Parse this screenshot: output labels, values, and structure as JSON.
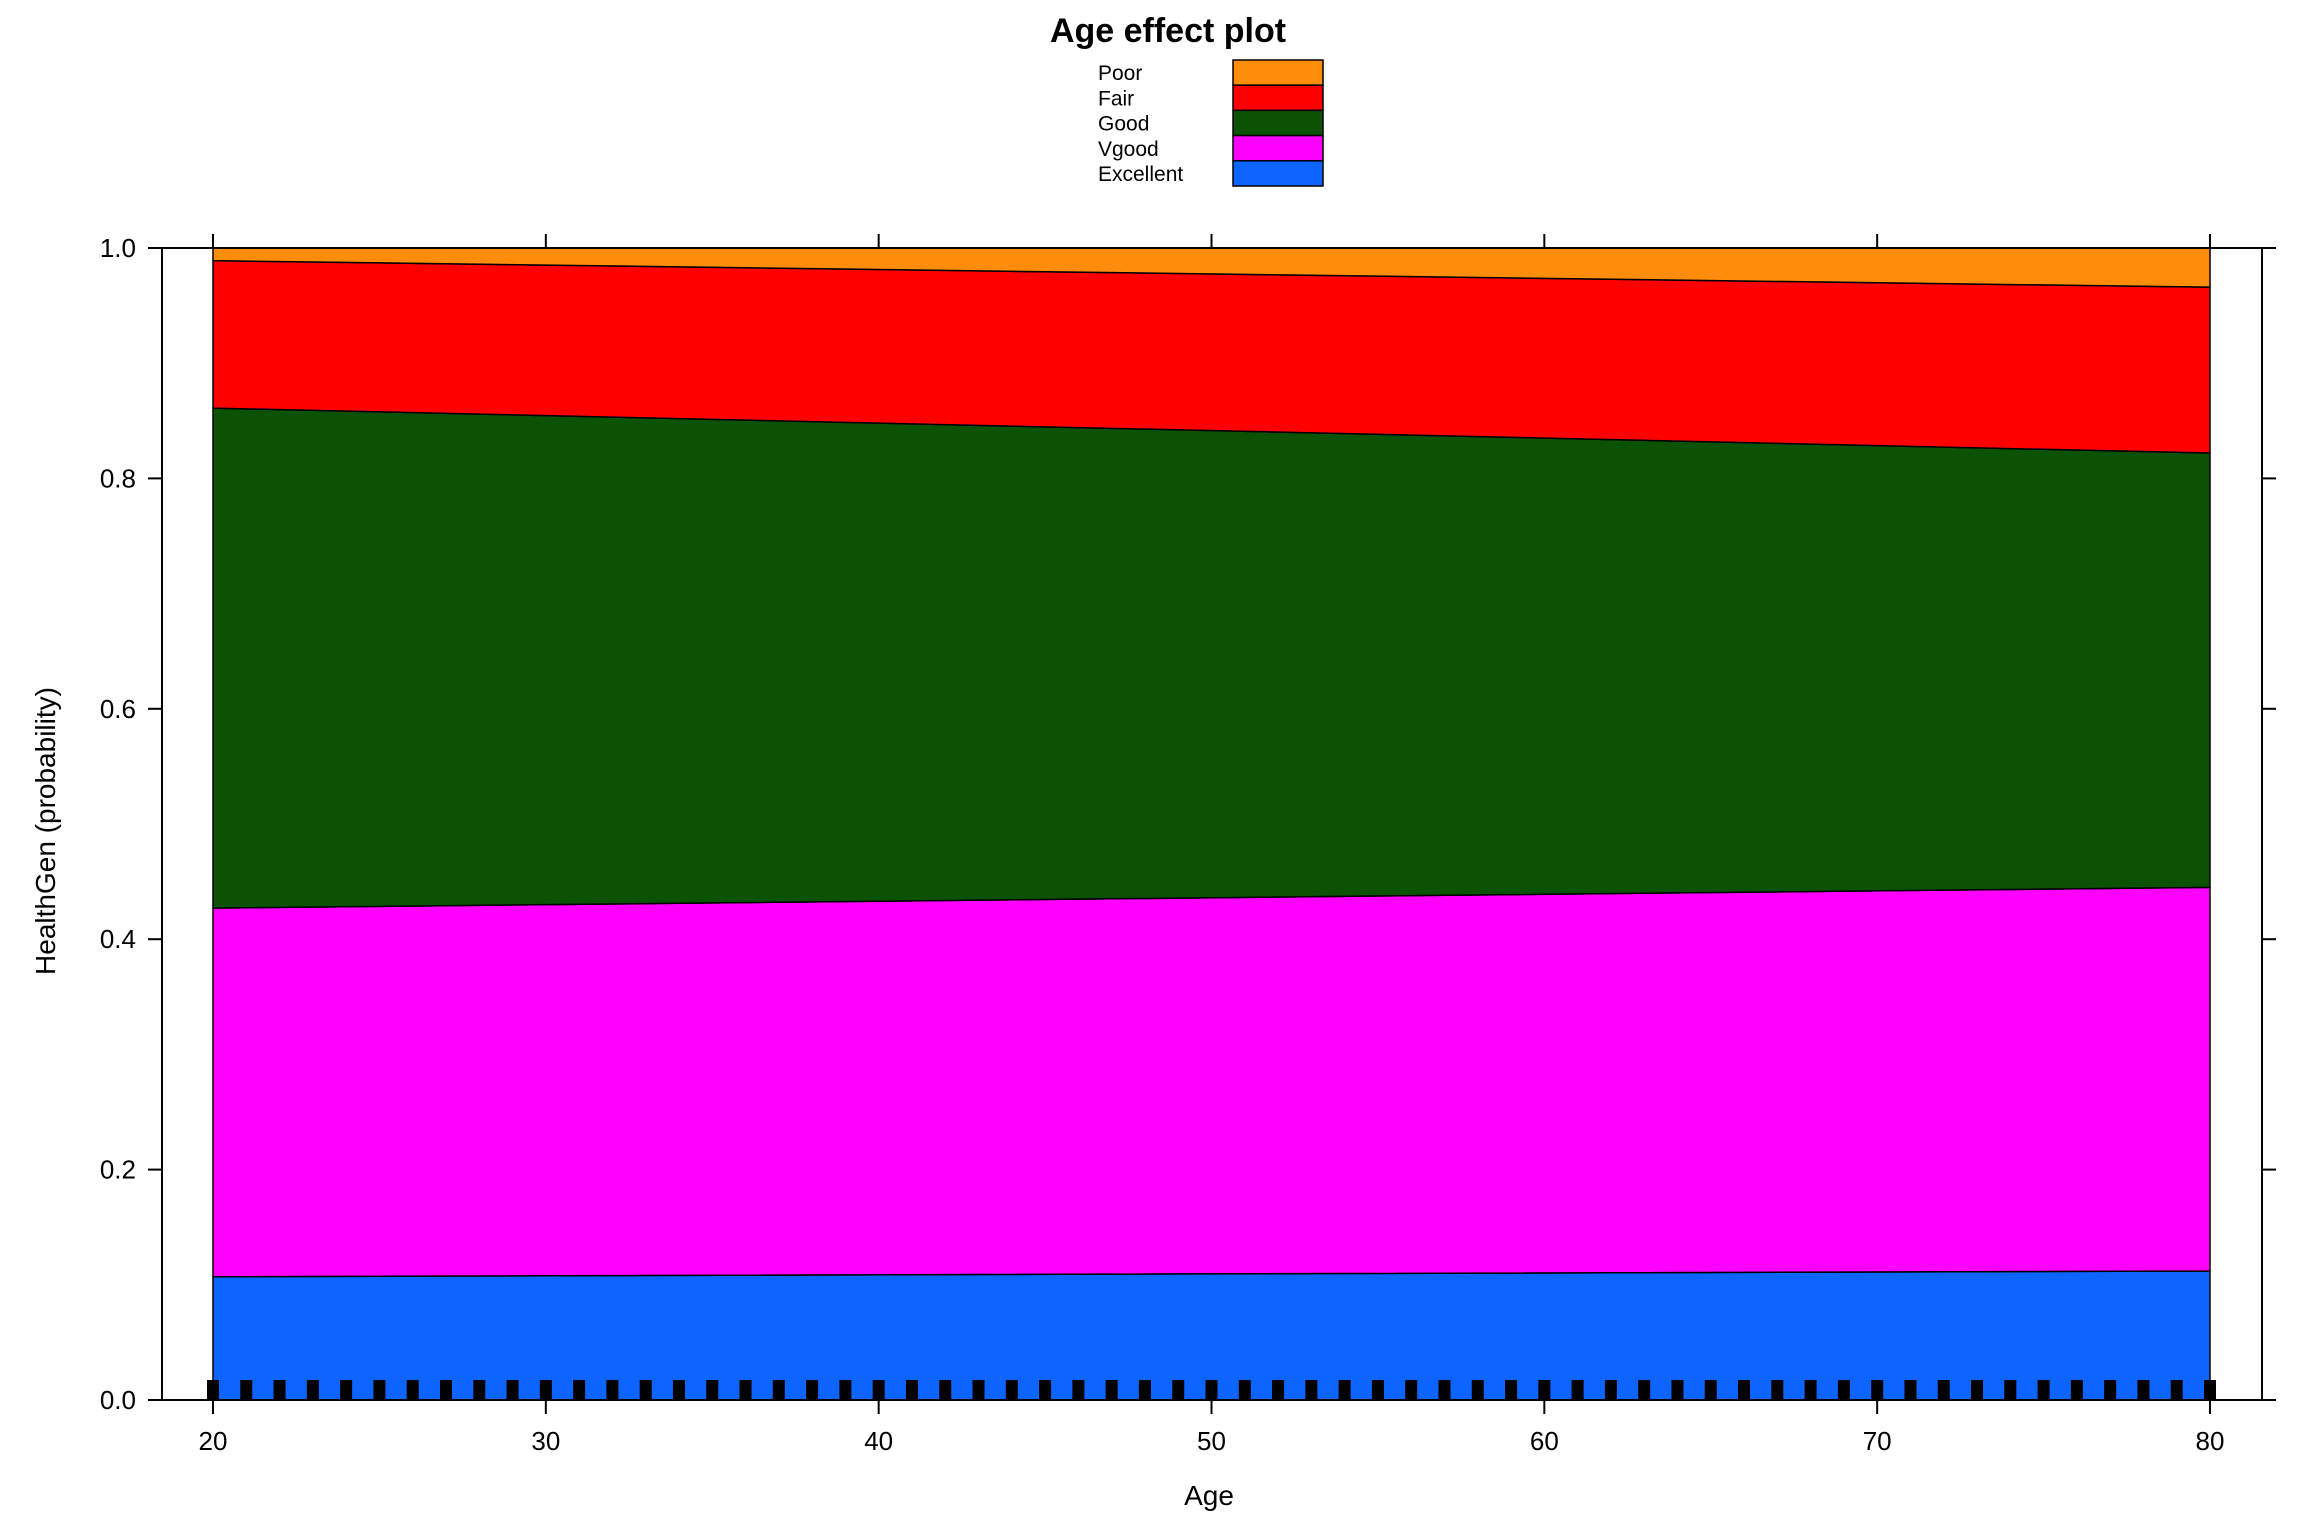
{
  "chart_data": {
    "type": "area",
    "stacked": true,
    "title": "Age effect plot",
    "xlabel": "Age",
    "ylabel": "HealthGen (probability)",
    "xlim": [
      20,
      80
    ],
    "ylim": [
      0,
      1
    ],
    "x_ticks": [
      20,
      30,
      40,
      50,
      60,
      70,
      80
    ],
    "y_ticks": [
      0.0,
      0.2,
      0.4,
      0.6,
      0.8,
      1.0
    ],
    "x_tick_labels": [
      "20",
      "30",
      "40",
      "50",
      "60",
      "70",
      "80"
    ],
    "y_tick_labels": [
      "0.0",
      "0.2",
      "0.4",
      "0.6",
      "0.8",
      "1.0"
    ],
    "legend_position": "top",
    "x": [
      20,
      80
    ],
    "series": [
      {
        "name": "Excellent",
        "color": "#0d64ff",
        "values": [
          0.107,
          0.112
        ]
      },
      {
        "name": "Vgood",
        "color": "#ff00ff",
        "values": [
          0.32,
          0.333
        ]
      },
      {
        "name": "Good",
        "color": "#0b5205",
        "values": [
          0.434,
          0.377
        ]
      },
      {
        "name": "Fair",
        "color": "#ff0000",
        "values": [
          0.128,
          0.144
        ]
      },
      {
        "name": "Poor",
        "color": "#ff8c0a",
        "values": [
          0.011,
          0.034
        ]
      }
    ],
    "legend_order": [
      "Poor",
      "Fair",
      "Good",
      "Vgood",
      "Excellent"
    ],
    "rug": {
      "shown": true,
      "x_start": 20,
      "x_end": 80,
      "count": 61
    }
  }
}
